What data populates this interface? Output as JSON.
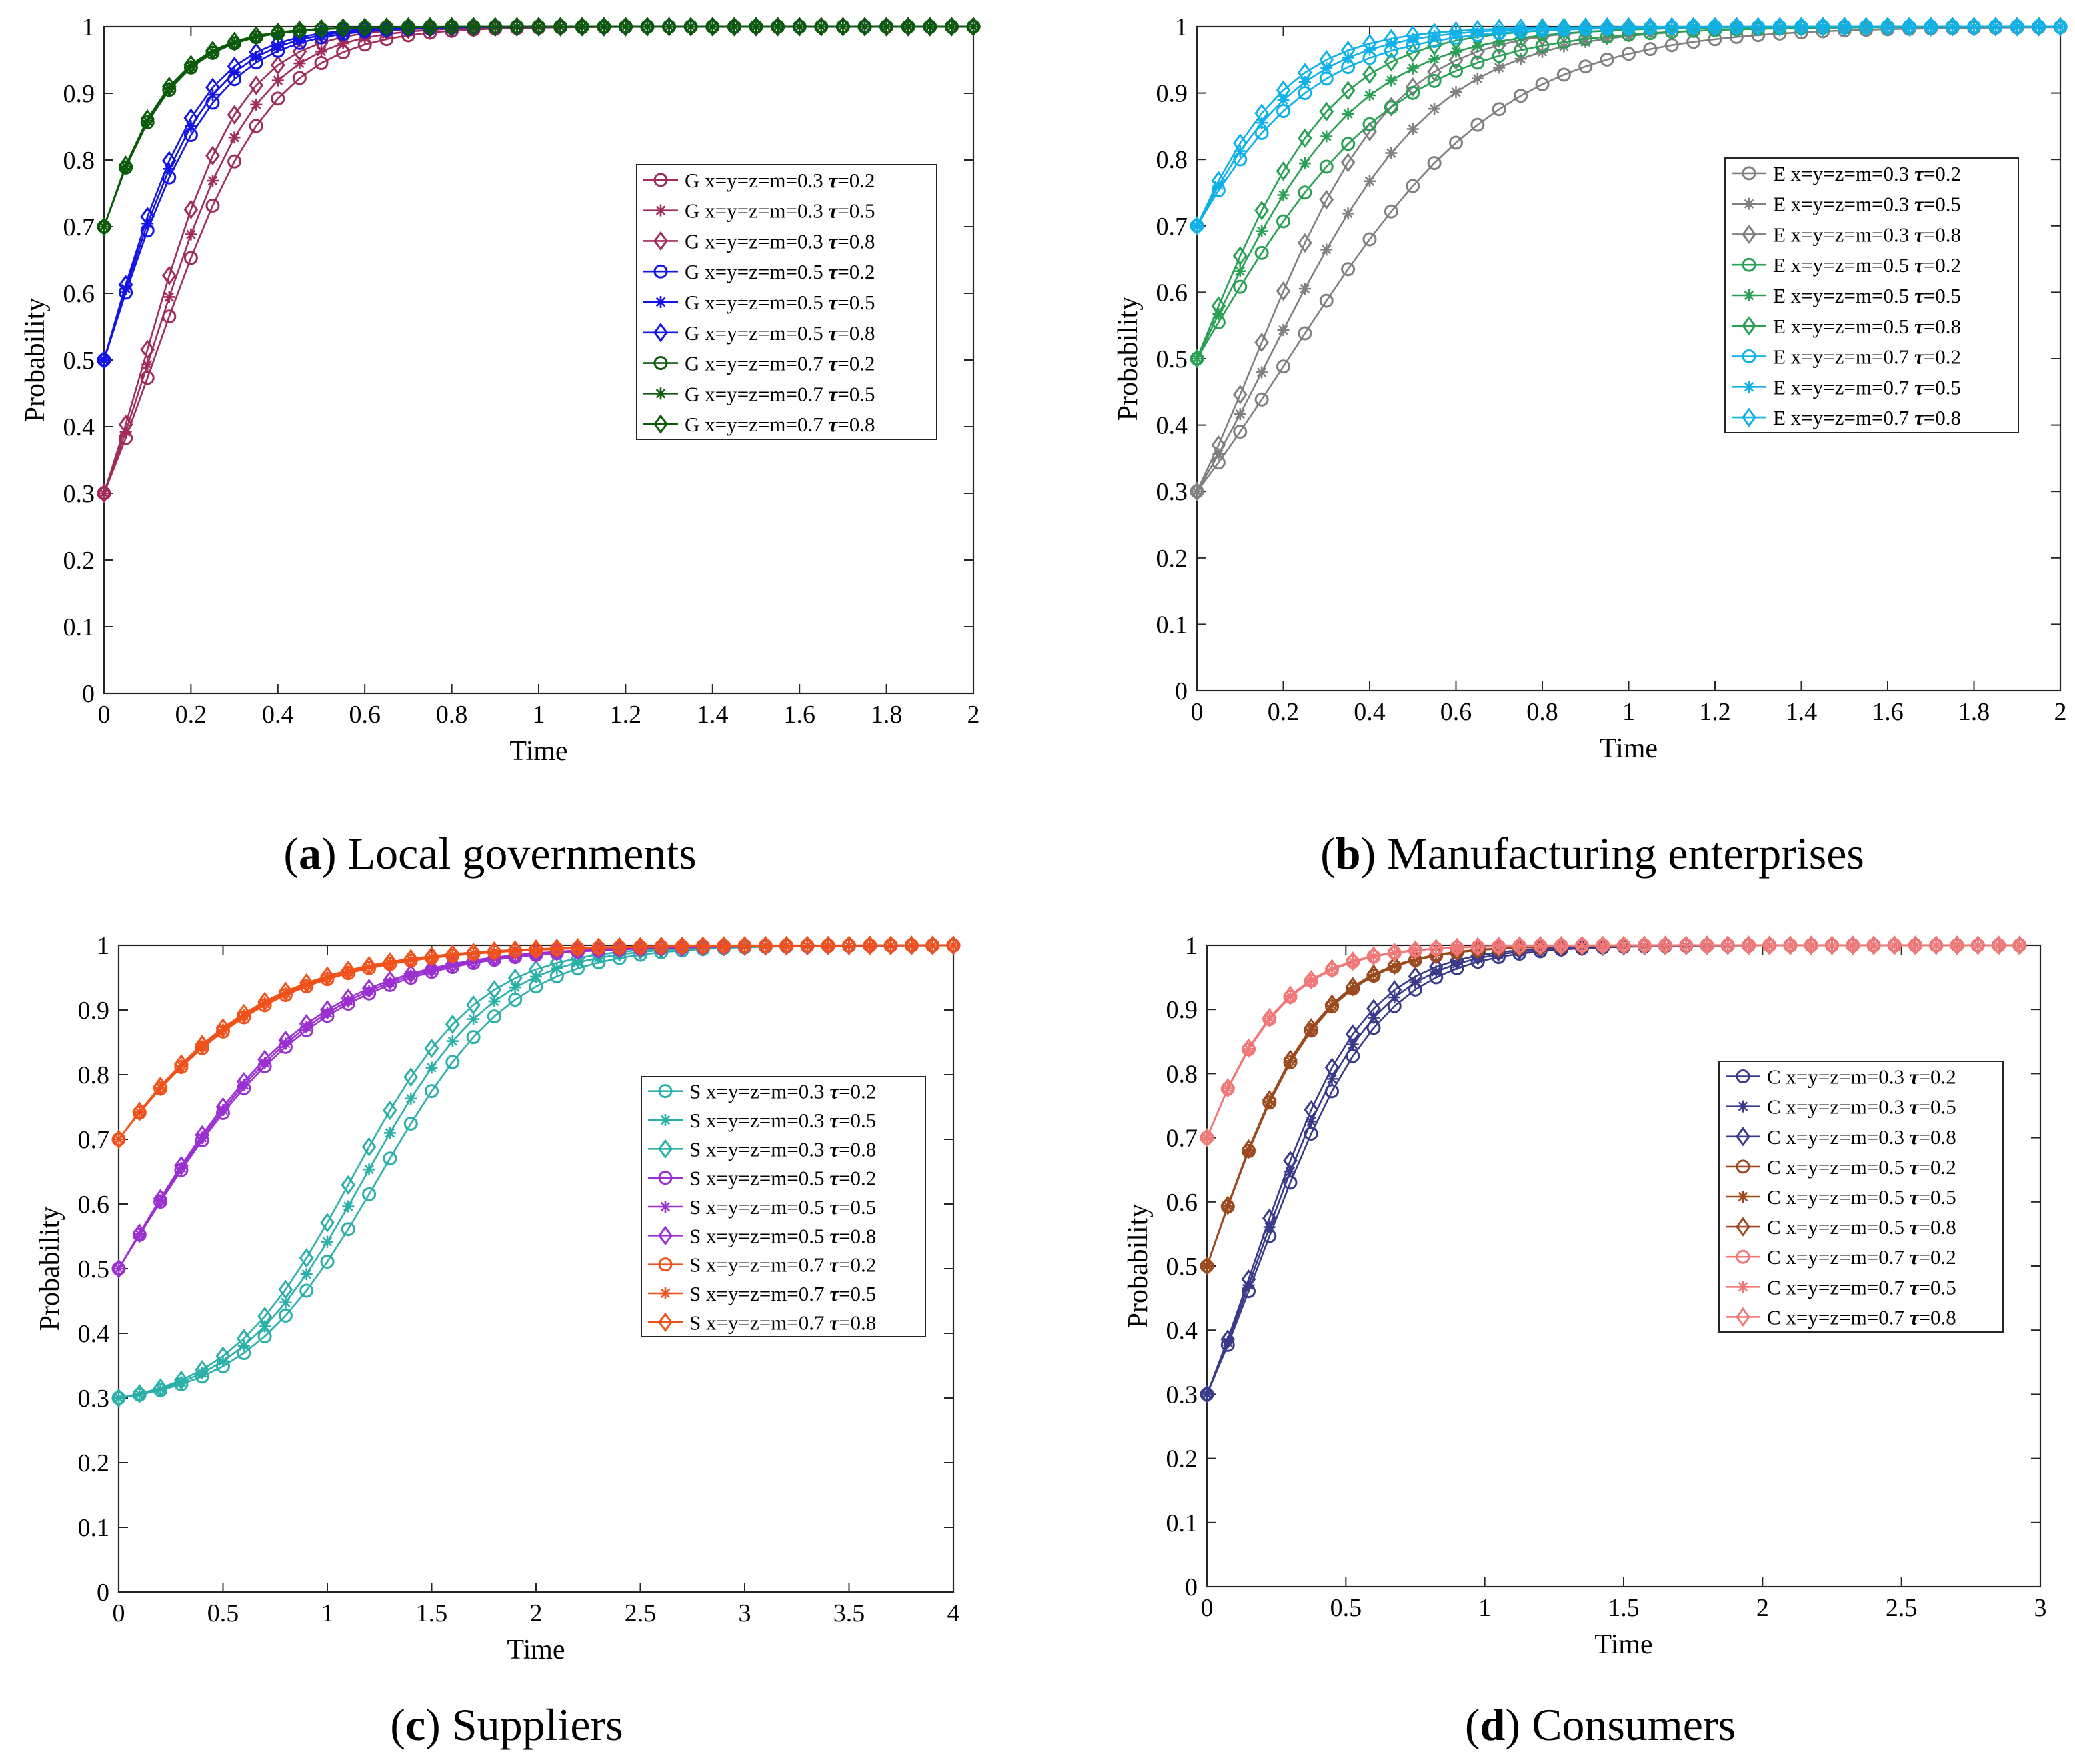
{
  "figure": {
    "captions": [
      {
        "letter": "a",
        "text": " Local governments"
      },
      {
        "letter": "b",
        "text": " Manufacturing enterprises"
      },
      {
        "letter": "c",
        "text": " Suppliers"
      },
      {
        "letter": "d",
        "text": " Consumers"
      }
    ]
  },
  "chart_data": [
    {
      "type": "line",
      "id": "a",
      "player": "G",
      "xlabel": "Time",
      "ylabel": "Probability",
      "xlim": [
        0,
        2
      ],
      "ylim": [
        0,
        1
      ],
      "xticks": [
        "0",
        "0.2",
        "0.4",
        "0.6",
        "0.8",
        "1",
        "1.2",
        "1.4",
        "1.6",
        "1.8",
        "2"
      ],
      "yticks": [
        "0",
        "0.1",
        "0.2",
        "0.3",
        "0.4",
        "0.5",
        "0.6",
        "0.7",
        "0.8",
        "0.9",
        "1"
      ],
      "xstep": 0.05,
      "legend_position": "center-right",
      "series": [
        {
          "name": "G x=y=z=m=0.3 τ=0.2",
          "label_main": "G x=y=z=m=0.3 ",
          "label_tau": "τ",
          "label_val": "=0.2",
          "marker": "circle",
          "color": "#a02c5a",
          "y0": 0.3,
          "k": 7.4
        },
        {
          "name": "G x=y=z=m=0.3 τ=0.5",
          "label_main": "G x=y=z=m=0.3 ",
          "label_tau": "τ",
          "label_val": "=0.5",
          "marker": "star",
          "color": "#a02c5a",
          "y0": 0.3,
          "k": 8.2
        },
        {
          "name": "G x=y=z=m=0.3 τ=0.8",
          "label_main": "G x=y=z=m=0.3 ",
          "label_tau": "τ",
          "label_val": "=0.8",
          "marker": "diamond",
          "color": "#a02c5a",
          "y0": 0.3,
          "k": 9.1
        },
        {
          "name": "G x=y=z=m=0.5 τ=0.2",
          "label_main": "G x=y=z=m=0.5 ",
          "label_tau": "τ",
          "label_val": "=0.2",
          "marker": "circle",
          "color": "#1414e6",
          "y0": 0.5,
          "k": 8.2
        },
        {
          "name": "G x=y=z=m=0.5 τ=0.5",
          "label_main": "G x=y=z=m=0.5 ",
          "label_tau": "τ",
          "label_val": "=0.5",
          "marker": "star",
          "color": "#1414e6",
          "y0": 0.5,
          "k": 8.7
        },
        {
          "name": "G x=y=z=m=0.5 τ=0.8",
          "label_main": "G x=y=z=m=0.5 ",
          "label_tau": "τ",
          "label_val": "=0.8",
          "marker": "diamond",
          "color": "#1414e6",
          "y0": 0.5,
          "k": 9.2
        },
        {
          "name": "G x=y=z=m=0.7 τ=0.2",
          "label_main": "G x=y=z=m=0.7 ",
          "label_tau": "τ",
          "label_val": "=0.2",
          "marker": "circle",
          "color": "#0a5a0a",
          "y0": 0.7,
          "k": 9.4
        },
        {
          "name": "G x=y=z=m=0.7 τ=0.5",
          "label_main": "G x=y=z=m=0.7 ",
          "label_tau": "τ",
          "label_val": "=0.5",
          "marker": "star",
          "color": "#0a5a0a",
          "y0": 0.7,
          "k": 9.6
        },
        {
          "name": "G x=y=z=m=0.7 τ=0.8",
          "label_main": "G x=y=z=m=0.7 ",
          "label_tau": "τ",
          "label_val": "=0.8",
          "marker": "diamond",
          "color": "#0a5a0a",
          "y0": 0.7,
          "k": 9.8
        }
      ]
    },
    {
      "type": "line",
      "id": "b",
      "player": "E",
      "xlabel": "Time",
      "ylabel": "Probability",
      "xlim": [
        0,
        2
      ],
      "ylim": [
        0,
        1
      ],
      "xticks": [
        "0",
        "0.2",
        "0.4",
        "0.6",
        "0.8",
        "1",
        "1.2",
        "1.4",
        "1.6",
        "1.8",
        "2"
      ],
      "yticks": [
        "0",
        "0.1",
        "0.2",
        "0.3",
        "0.4",
        "0.5",
        "0.6",
        "0.7",
        "0.8",
        "0.9",
        "1"
      ],
      "xstep": 0.05,
      "legend_position": "center-right",
      "series": [
        {
          "name": "E x=y=z=m=0.3 τ=0.2",
          "label_main": "E x=y=z=m=0.3 ",
          "label_tau": "τ",
          "label_val": "=0.2",
          "marker": "circle",
          "color": "#808080",
          "y0": 0.3,
          "k": 4.0
        },
        {
          "name": "E x=y=z=m=0.3 τ=0.5",
          "label_main": "E x=y=z=m=0.3 ",
          "label_tau": "τ",
          "label_val": "=0.5",
          "marker": "star",
          "color": "#808080",
          "y0": 0.3,
          "k": 5.1
        },
        {
          "name": "E x=y=z=m=0.3 τ=0.8",
          "label_main": "E x=y=z=m=0.3 ",
          "label_tau": "τ",
          "label_val": "=0.8",
          "marker": "diamond",
          "color": "#808080",
          "y0": 0.3,
          "k": 6.3
        },
        {
          "name": "E x=y=z=m=0.5 τ=0.2",
          "label_main": "E x=y=z=m=0.5 ",
          "label_tau": "τ",
          "label_val": "=0.2",
          "marker": "circle",
          "color": "#2aa055",
          "y0": 0.5,
          "k": 4.4
        },
        {
          "name": "E x=y=z=m=0.5 τ=0.5",
          "label_main": "E x=y=z=m=0.5 ",
          "label_tau": "τ",
          "label_val": "=0.5",
          "marker": "star",
          "color": "#2aa055",
          "y0": 0.5,
          "k": 5.4
        },
        {
          "name": "E x=y=z=m=0.5 τ=0.8",
          "label_main": "E x=y=z=m=0.5 ",
          "label_tau": "τ",
          "label_val": "=0.8",
          "marker": "diamond",
          "color": "#2aa055",
          "y0": 0.5,
          "k": 6.4
        },
        {
          "name": "E x=y=z=m=0.7 τ=0.2",
          "label_main": "E x=y=z=m=0.7 ",
          "label_tau": "τ",
          "label_val": "=0.2",
          "marker": "circle",
          "color": "#10b0e8",
          "y0": 0.7,
          "k": 5.4
        },
        {
          "name": "E x=y=z=m=0.7 τ=0.5",
          "label_main": "E x=y=z=m=0.7 ",
          "label_tau": "τ",
          "label_val": "=0.5",
          "marker": "star",
          "color": "#10b0e8",
          "y0": 0.7,
          "k": 6.2
        },
        {
          "name": "E x=y=z=m=0.7 τ=0.8",
          "label_main": "E x=y=z=m=0.7 ",
          "label_tau": "τ",
          "label_val": "=0.8",
          "marker": "diamond",
          "color": "#10b0e8",
          "y0": 0.7,
          "k": 7.0
        }
      ]
    },
    {
      "type": "line",
      "id": "c",
      "player": "S",
      "xlabel": "Time",
      "ylabel": "Probability",
      "xlim": [
        0,
        4
      ],
      "ylim": [
        0,
        1
      ],
      "xticks": [
        "0",
        "0.5",
        "1",
        "1.5",
        "2",
        "2.5",
        "3",
        "3.5",
        "4"
      ],
      "yticks": [
        "0",
        "0.1",
        "0.2",
        "0.3",
        "0.4",
        "0.5",
        "0.6",
        "0.7",
        "0.8",
        "0.9",
        "1"
      ],
      "xstep": 0.1,
      "legend_position": "center-right",
      "series": [
        {
          "name": "S x=y=z=m=0.3 τ=0.2",
          "label_main": "S x=y=z=m=0.3 ",
          "label_tau": "τ",
          "label_val": "=0.2",
          "marker": "circle",
          "color": "#2ab0a8",
          "y0": 0.3,
          "k": 3.1,
          "t0": 1.25,
          "shape": "sigmoid"
        },
        {
          "name": "S x=y=z=m=0.3 τ=0.5",
          "label_main": "S x=y=z=m=0.3 ",
          "label_tau": "τ",
          "label_val": "=0.5",
          "marker": "star",
          "color": "#2ab0a8",
          "y0": 0.3,
          "k": 3.2,
          "t0": 1.18,
          "shape": "sigmoid"
        },
        {
          "name": "S x=y=z=m=0.3 τ=0.8",
          "label_main": "S x=y=z=m=0.3 ",
          "label_tau": "τ",
          "label_val": "=0.8",
          "marker": "diamond",
          "color": "#2ab0a8",
          "y0": 0.3,
          "k": 3.3,
          "t0": 1.12,
          "shape": "sigmoid"
        },
        {
          "name": "S x=y=z=m=0.5 τ=0.2",
          "label_main": "S x=y=z=m=0.5 ",
          "label_tau": "τ",
          "label_val": "=0.2",
          "marker": "circle",
          "color": "#9a30d0",
          "y0": 0.5,
          "k": 2.1
        },
        {
          "name": "S x=y=z=m=0.5 τ=0.5",
          "label_main": "S x=y=z=m=0.5 ",
          "label_tau": "τ",
          "label_val": "=0.5",
          "marker": "star",
          "color": "#9a30d0",
          "y0": 0.5,
          "k": 2.15
        },
        {
          "name": "S x=y=z=m=0.5 τ=0.8",
          "label_main": "S x=y=z=m=0.5 ",
          "label_tau": "τ",
          "label_val": "=0.8",
          "marker": "diamond",
          "color": "#9a30d0",
          "y0": 0.5,
          "k": 2.2
        },
        {
          "name": "S x=y=z=m=0.7 τ=0.2",
          "label_main": "S x=y=z=m=0.7 ",
          "label_tau": "τ",
          "label_val": "=0.2",
          "marker": "circle",
          "color": "#f0501a",
          "y0": 0.7,
          "k": 2.05
        },
        {
          "name": "S x=y=z=m=0.7 τ=0.5",
          "label_main": "S x=y=z=m=0.7 ",
          "label_tau": "τ",
          "label_val": "=0.5",
          "marker": "star",
          "color": "#f0501a",
          "y0": 0.7,
          "k": 2.1
        },
        {
          "name": "S x=y=z=m=0.7 τ=0.8",
          "label_main": "S x=y=z=m=0.7 ",
          "label_tau": "τ",
          "label_val": "=0.8",
          "marker": "diamond",
          "color": "#f0501a",
          "y0": 0.7,
          "k": 2.15
        }
      ]
    },
    {
      "type": "line",
      "id": "d",
      "player": "C",
      "xlabel": "Time",
      "ylabel": "Probability",
      "xlim": [
        0,
        3
      ],
      "ylim": [
        0,
        1
      ],
      "xticks": [
        "0",
        "0.5",
        "1",
        "1.5",
        "2",
        "2.5",
        "3"
      ],
      "yticks": [
        "0",
        "0.1",
        "0.2",
        "0.3",
        "0.4",
        "0.5",
        "0.6",
        "0.7",
        "0.8",
        "0.9",
        "1"
      ],
      "xstep": 0.075,
      "xmax_data": 2.95,
      "legend_position": "center-right",
      "series": [
        {
          "name": "C x=y=z=m=0.3 τ=0.2",
          "label_main": "C x=y=z=m=0.3 ",
          "label_tau": "τ",
          "label_val": "=0.2",
          "marker": "circle",
          "color": "#3a3a8a",
          "y0": 0.3,
          "k": 4.6
        },
        {
          "name": "C x=y=z=m=0.3 τ=0.5",
          "label_main": "C x=y=z=m=0.3 ",
          "label_tau": "τ",
          "label_val": "=0.5",
          "marker": "star",
          "color": "#3a3a8a",
          "y0": 0.3,
          "k": 4.85
        },
        {
          "name": "C x=y=z=m=0.3 τ=0.8",
          "label_main": "C x=y=z=m=0.3 ",
          "label_tau": "τ",
          "label_val": "=0.8",
          "marker": "diamond",
          "color": "#3a3a8a",
          "y0": 0.3,
          "k": 5.1
        },
        {
          "name": "C x=y=z=m=0.5 τ=0.2",
          "label_main": "C x=y=z=m=0.5 ",
          "label_tau": "τ",
          "label_val": "=0.2",
          "marker": "circle",
          "color": "#9a4a1e",
          "y0": 0.5,
          "k": 5.0
        },
        {
          "name": "C x=y=z=m=0.5 τ=0.5",
          "label_main": "C x=y=z=m=0.5 ",
          "label_tau": "τ",
          "label_val": "=0.5",
          "marker": "star",
          "color": "#9a4a1e",
          "y0": 0.5,
          "k": 5.05
        },
        {
          "name": "C x=y=z=m=0.5 τ=0.8",
          "label_main": "C x=y=z=m=0.5 ",
          "label_tau": "τ",
          "label_val": "=0.8",
          "marker": "diamond",
          "color": "#9a4a1e",
          "y0": 0.5,
          "k": 5.1
        },
        {
          "name": "C x=y=z=m=0.7 τ=0.2",
          "label_main": "C x=y=z=m=0.7 ",
          "label_tau": "τ",
          "label_val": "=0.2",
          "marker": "circle",
          "color": "#f07878",
          "y0": 0.7,
          "k": 5.3
        },
        {
          "name": "C x=y=z=m=0.7 τ=0.5",
          "label_main": "C x=y=z=m=0.7 ",
          "label_tau": "τ",
          "label_val": "=0.5",
          "marker": "star",
          "color": "#f07878",
          "y0": 0.7,
          "k": 5.35
        },
        {
          "name": "C x=y=z=m=0.7 τ=0.8",
          "label_main": "C x=y=z=m=0.7 ",
          "label_tau": "τ",
          "label_val": "=0.8",
          "marker": "diamond",
          "color": "#f07878",
          "y0": 0.7,
          "k": 5.4
        }
      ]
    }
  ]
}
